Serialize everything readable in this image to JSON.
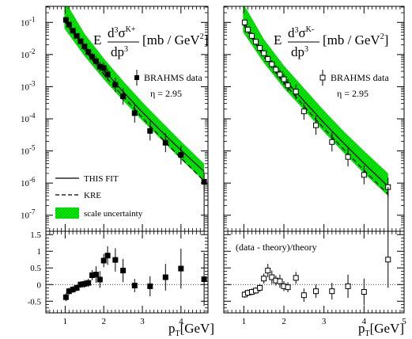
{
  "chart_data": [
    {
      "type": "scatter",
      "panel": "top-left",
      "title_E": "E",
      "title_numer_base": "d",
      "title_numer_sup": "3",
      "title_numer_sigma": "σ",
      "title_numer_species": "K+",
      "title_denom": "dp",
      "title_denom_sup": "3",
      "title_units": "[mb / GeV",
      "title_units_sup": "2",
      "title_units_close": "]",
      "legend_marker_label": "BRAHMS data",
      "eta_label": "η = 2.95",
      "yscale": "log",
      "xlim": [
        0.5,
        4.7
      ],
      "ylim_exp": [
        -7.5,
        -0.5
      ],
      "ytick_base": "10",
      "yticks_exp": [
        "-7",
        "-6",
        "-5",
        "-4",
        "-3",
        "-2",
        "-1"
      ],
      "fit_legend": [
        {
          "label": "THIS FIT",
          "style": "solid"
        },
        {
          "label": "KRE",
          "style": "dashed"
        },
        {
          "label": "scale uncertainty",
          "style": "band"
        }
      ],
      "band_color": "#00ee00",
      "band_hatch_color": "#00aa00",
      "series": [
        {
          "marker": "filled-square",
          "x": [
            1.02,
            1.1,
            1.2,
            1.3,
            1.4,
            1.5,
            1.6,
            1.7,
            1.8,
            1.9,
            2.0,
            2.1,
            2.3,
            2.5,
            2.8,
            3.2,
            3.6,
            4.0,
            4.6
          ],
          "y": [
            0.12,
            0.085,
            0.055,
            0.038,
            0.026,
            0.018,
            0.012,
            0.0085,
            0.0062,
            0.0042,
            0.0038,
            0.0024,
            0.00115,
            0.0005,
            0.00015,
            4.2e-05,
            1.8e-05,
            7.5e-06,
            1.1e-06
          ]
        }
      ],
      "fit_curve": {
        "x": [
          0.98,
          1.5,
          2.0,
          2.5,
          3.0,
          3.5,
          4.0,
          4.6
        ],
        "y": [
          0.14,
          0.018,
          0.0033,
          0.0007,
          0.00016,
          4e-05,
          1.05e-05,
          2.3e-06
        ]
      },
      "kre_curve": {
        "x": [
          0.98,
          1.5,
          2.0,
          2.5,
          3.0,
          3.5,
          4.0,
          4.6
        ],
        "y": [
          0.11,
          0.014,
          0.0024,
          0.0005,
          0.000108,
          2.5e-05,
          6e-06,
          1.15e-06
        ]
      },
      "band_upper": {
        "x": [
          0.98,
          1.5,
          2.0,
          2.5,
          3.0,
          3.5,
          4.0,
          4.6
        ],
        "y": [
          0.5,
          0.045,
          0.0076,
          0.0015,
          0.00033,
          8e-05,
          2e-05,
          4e-06
        ]
      },
      "band_lower": {
        "x": [
          0.98,
          1.5,
          2.0,
          2.5,
          3.0,
          3.5,
          4.0,
          4.6
        ],
        "y": [
          0.065,
          0.009,
          0.0017,
          0.00037,
          8.8e-05,
          2.2e-05,
          5.5e-06,
          1.15e-06
        ]
      }
    },
    {
      "type": "scatter",
      "panel": "top-right",
      "title_E": "E",
      "title_numer_base": "d",
      "title_numer_sup": "3",
      "title_numer_sigma": "σ",
      "title_numer_species": "K-",
      "title_denom": "dp",
      "title_denom_sup": "3",
      "title_units": "[mb / GeV",
      "title_units_sup": "2",
      "title_units_close": "]",
      "legend_marker_label": "BRAHMS data",
      "eta_label": "η = 2.95",
      "yscale": "log",
      "xlim": [
        0.5,
        5.0
      ],
      "ylim_exp": [
        -7.5,
        -0.5
      ],
      "series": [
        {
          "marker": "open-square",
          "x": [
            1.02,
            1.1,
            1.2,
            1.3,
            1.4,
            1.5,
            1.6,
            1.7,
            1.8,
            1.9,
            2.0,
            2.1,
            2.3,
            2.5,
            2.8,
            3.2,
            3.6,
            4.0,
            4.6
          ],
          "y": [
            0.1,
            0.06,
            0.038,
            0.025,
            0.016,
            0.011,
            0.0073,
            0.005,
            0.0034,
            0.0024,
            0.0017,
            0.0011,
            0.0007,
            0.00017,
            6.3e-05,
            1.9e-05,
            6.5e-06,
            1.8e-06,
            7.5e-07
          ]
        }
      ],
      "fit_curve": {
        "x": [
          0.98,
          1.5,
          2.0,
          2.5,
          3.0,
          3.5,
          4.0,
          4.6
        ],
        "y": [
          0.11,
          0.011,
          0.0018,
          0.00036,
          7.5e-05,
          1.7e-05,
          4.1e-06,
          7.9e-07
        ]
      },
      "kre_curve": {
        "x": [
          0.98,
          1.5,
          2.0,
          2.5,
          3.0,
          3.5,
          4.0,
          4.6
        ],
        "y": [
          0.09,
          0.0085,
          0.0013,
          0.00025,
          5e-05,
          1.1e-05,
          2.5e-06,
          4.5e-07
        ]
      },
      "band_upper": {
        "x": [
          0.98,
          1.5,
          2.0,
          2.5,
          3.0,
          3.5,
          4.0,
          4.6
        ],
        "y": [
          0.4,
          0.03,
          0.0045,
          0.0009,
          0.00018,
          4e-05,
          1e-05,
          2e-06
        ]
      },
      "band_lower": {
        "x": [
          0.98,
          1.5,
          2.0,
          2.5,
          3.0,
          3.5,
          4.0,
          4.6
        ],
        "y": [
          0.05,
          0.0055,
          0.0009,
          0.00019,
          3.9e-05,
          8.6e-06,
          2e-06,
          4e-07
        ]
      }
    },
    {
      "type": "scatter",
      "panel": "bottom-left",
      "xlim": [
        0.5,
        4.7
      ],
      "ylim": [
        -0.85,
        1.6
      ],
      "yticks": [
        "-0.5",
        "0",
        "0.5",
        "1",
        "1.5"
      ],
      "xticks": [
        "1",
        "2",
        "3",
        "4"
      ],
      "xlabel_base": "p",
      "xlabel_sub": "T",
      "xlabel_units": "[GeV]",
      "series": [
        {
          "marker": "filled-square",
          "x": [
            1.02,
            1.1,
            1.2,
            1.3,
            1.4,
            1.5,
            1.6,
            1.7,
            1.8,
            1.9,
            2.0,
            2.1,
            2.3,
            2.5,
            2.8,
            3.2,
            3.6,
            4.0,
            4.6
          ],
          "y": [
            -0.38,
            -0.2,
            -0.15,
            -0.1,
            0.0,
            0.02,
            0.05,
            0.28,
            0.3,
            0.15,
            0.72,
            0.87,
            0.74,
            0.42,
            -0.03,
            -0.05,
            0.22,
            0.48,
            0.16
          ],
          "err": [
            0.12,
            0.1,
            0.1,
            0.1,
            0.1,
            0.12,
            0.12,
            0.15,
            0.25,
            0.25,
            0.2,
            0.28,
            0.35,
            0.35,
            0.2,
            0.3,
            0.4,
            0.6,
            0.8
          ]
        }
      ]
    },
    {
      "type": "scatter",
      "panel": "bottom-right",
      "annotation": "(data - theory)/theory",
      "xlim": [
        0.5,
        5.0
      ],
      "ylim": [
        -0.85,
        1.6
      ],
      "xticks": [
        "1",
        "2",
        "3",
        "4",
        "5"
      ],
      "xlabel_base": "p",
      "xlabel_sub": "T",
      "xlabel_units": "[GeV]",
      "series": [
        {
          "marker": "open-square",
          "x": [
            1.02,
            1.1,
            1.2,
            1.3,
            1.4,
            1.5,
            1.6,
            1.7,
            1.8,
            1.9,
            2.0,
            2.1,
            2.3,
            2.5,
            2.8,
            3.2,
            3.6,
            4.0,
            4.6
          ],
          "y": [
            -0.3,
            -0.25,
            -0.22,
            -0.18,
            -0.1,
            0.18,
            0.42,
            0.22,
            0.12,
            0.1,
            -0.05,
            -0.08,
            0.2,
            -0.32,
            -0.2,
            -0.2,
            -0.05,
            -0.22,
            0.75
          ],
          "err": [
            0.1,
            0.1,
            0.1,
            0.1,
            0.12,
            0.15,
            0.2,
            0.2,
            0.15,
            0.2,
            0.15,
            0.15,
            0.18,
            0.2,
            0.2,
            0.25,
            0.35,
            0.4,
            0.85
          ]
        }
      ]
    }
  ]
}
